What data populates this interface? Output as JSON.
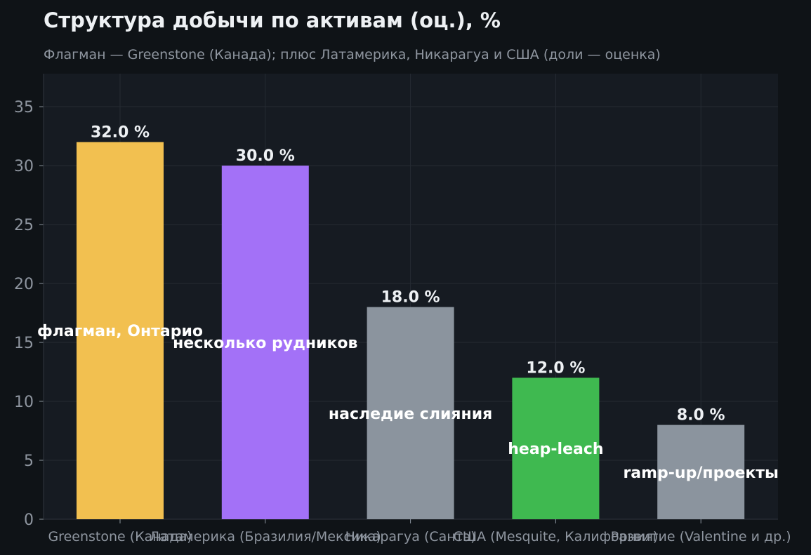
{
  "chart_data": {
    "type": "bar",
    "title": "Структура добычи по активам (оц.), %",
    "subtitle": "Флагман — Greenstone (Канада); плюс Латамерика, Никарагуа и США (доли — оценка)",
    "categories": [
      "Greenstone (Канада)",
      "Латамерика (Бразилия/Мексика)",
      "Никарагуа (Сантэ)",
      "США (Mesquite, Калифорния)",
      "Развитие (Valentine и др.)"
    ],
    "values": [
      32.0,
      30.0,
      18.0,
      12.0,
      8.0
    ],
    "data_labels": [
      "32.0 %",
      "30.0 %",
      "18.0 %",
      "12.0 %",
      "8.0 %"
    ],
    "annotations": [
      "флагман, Онтарио",
      "несколько рудников",
      "наследие слияния",
      "heap-leach",
      "ramp-up/проекты"
    ],
    "colors": [
      "#f2c050",
      "#a371f7",
      "#8b949e",
      "#3fb950",
      "#8b949e"
    ],
    "xlabel": "",
    "ylabel": "",
    "ylim": [
      0,
      37.8
    ],
    "yticks": [
      0,
      5,
      10,
      15,
      20,
      25,
      30,
      35
    ],
    "grid": true,
    "legend": "none",
    "background": "#0f1317",
    "plot_background": "#161b22"
  }
}
